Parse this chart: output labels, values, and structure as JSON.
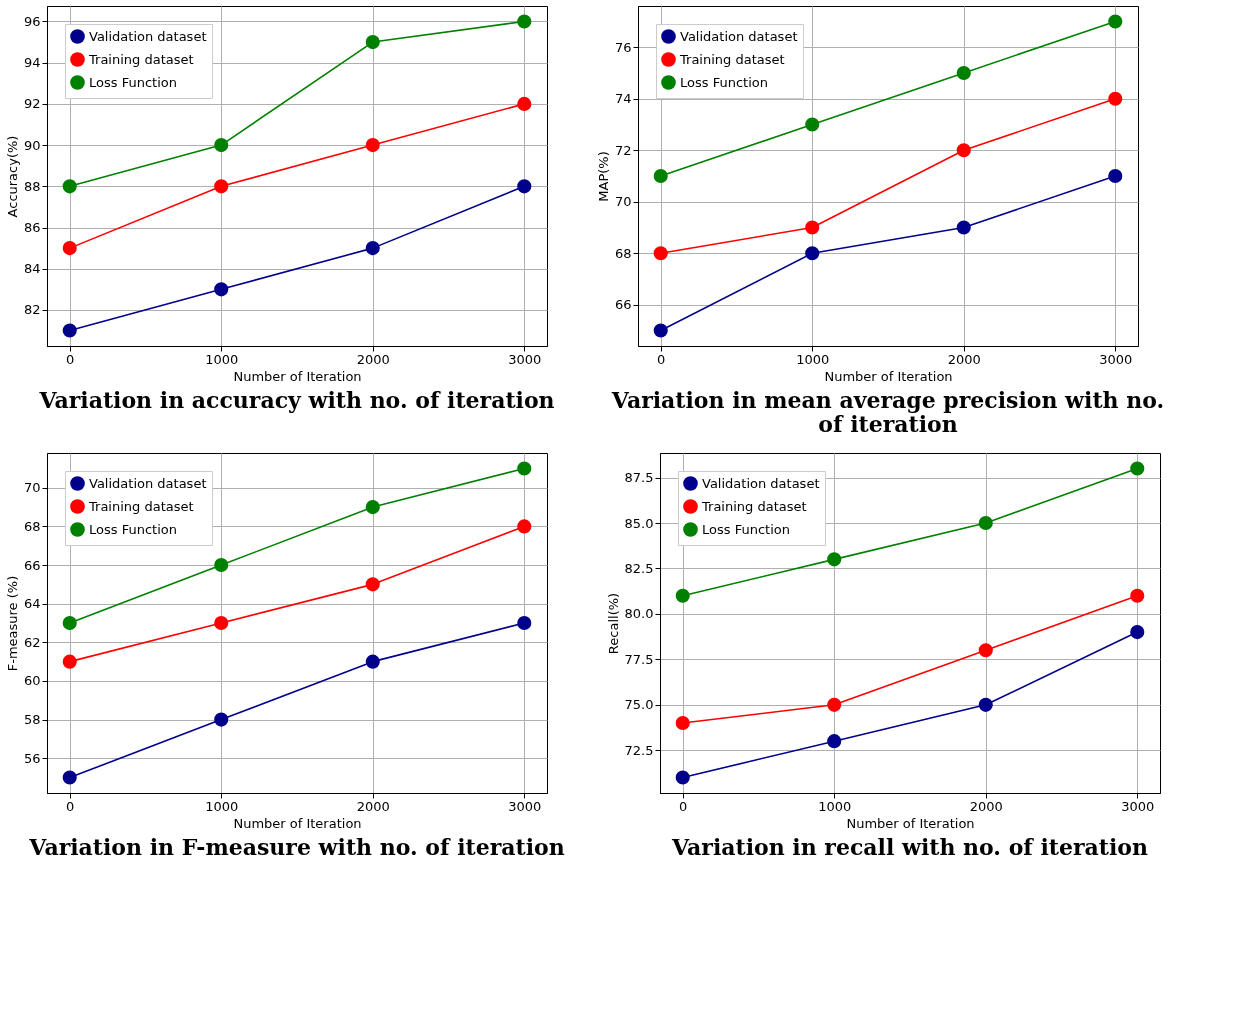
{
  "chart_data": [
    {
      "type": "line",
      "title": "Variation in accuracy with no. of iteration",
      "xlabel": "Number of Iteration",
      "ylabel": "Accuracy(%)",
      "x": [
        0,
        1000,
        2000,
        3000
      ],
      "xlim": [
        -150,
        3150
      ],
      "xticks": [
        0,
        1000,
        2000,
        3000
      ],
      "ylim": [
        80.25,
        96.75
      ],
      "yticks": [
        82,
        84,
        86,
        88,
        90,
        92,
        94,
        96
      ],
      "grid": true,
      "legend": "top left",
      "marker": "circle",
      "line_style": "solid",
      "series": [
        {
          "name": "Validation dataset",
          "color": "#00008b",
          "values": [
            81,
            83,
            85,
            88
          ]
        },
        {
          "name": "Training dataset",
          "color": "#ff0000",
          "values": [
            85,
            88,
            90,
            92
          ]
        },
        {
          "name": "Loss Function",
          "color": "#008000",
          "values": [
            88,
            90,
            95,
            96
          ]
        }
      ]
    },
    {
      "type": "line",
      "title": "Variation in mean average precision with no. of iteration",
      "xlabel": "Number of Iteration",
      "ylabel": "MAP(%)",
      "x": [
        0,
        1000,
        2000,
        3000
      ],
      "xlim": [
        -150,
        3150
      ],
      "xticks": [
        0,
        1000,
        2000,
        3000
      ],
      "ylim": [
        64.4,
        77.6
      ],
      "yticks": [
        66,
        68,
        70,
        72,
        74,
        76
      ],
      "grid": true,
      "legend": "top left",
      "marker": "circle",
      "line_style": "solid",
      "series": [
        {
          "name": "Validation dataset",
          "color": "#00008b",
          "values": [
            65,
            68,
            69,
            71
          ]
        },
        {
          "name": "Training dataset",
          "color": "#ff0000",
          "values": [
            68,
            69,
            72,
            74
          ]
        },
        {
          "name": "Loss Function",
          "color": "#008000",
          "values": [
            71,
            73,
            75,
            77
          ]
        }
      ]
    },
    {
      "type": "line",
      "title": "Variation in F-measure with no. of iteration",
      "xlabel": "Number of Iteration",
      "ylabel": "F-measure (%)",
      "x": [
        0,
        1000,
        2000,
        3000
      ],
      "xlim": [
        -150,
        3150
      ],
      "xticks": [
        0,
        1000,
        2000,
        3000
      ],
      "ylim": [
        54.2,
        71.8
      ],
      "yticks": [
        56,
        58,
        60,
        62,
        64,
        66,
        68,
        70
      ],
      "grid": true,
      "legend": "top left",
      "marker": "circle",
      "line_style": "solid",
      "series": [
        {
          "name": "Validation dataset",
          "color": "#00008b",
          "values": [
            55,
            58,
            61,
            63
          ]
        },
        {
          "name": "Training dataset",
          "color": "#ff0000",
          "values": [
            61,
            63,
            65,
            68
          ]
        },
        {
          "name": "Loss Function",
          "color": "#008000",
          "values": [
            63,
            66,
            69,
            71
          ]
        }
      ]
    },
    {
      "type": "line",
      "title": "Variation in recall with no. of iteration",
      "xlabel": "Number of Iteration",
      "ylabel": "Recall(%)",
      "x": [
        0,
        1000,
        2000,
        3000
      ],
      "xlim": [
        -150,
        3150
      ],
      "xticks": [
        0,
        1000,
        2000,
        3000
      ],
      "ylim": [
        70.15,
        88.85
      ],
      "yticks": [
        72.5,
        {
          "value": 75,
          "label": "75.0"
        },
        77.5,
        {
          "value": 80,
          "label": "80.0"
        },
        82.5,
        {
          "value": 85,
          "label": "85.0"
        },
        87.5
      ],
      "grid": true,
      "legend": "top left",
      "marker": "circle",
      "line_style": "solid",
      "series": [
        {
          "name": "Validation dataset",
          "color": "#00008b",
          "values": [
            71,
            73,
            75,
            79
          ]
        },
        {
          "name": "Training dataset",
          "color": "#ff0000",
          "values": [
            74,
            75,
            78,
            81
          ]
        },
        {
          "name": "Loss Function",
          "color": "#008000",
          "values": [
            81,
            83,
            85,
            88
          ]
        }
      ]
    }
  ]
}
